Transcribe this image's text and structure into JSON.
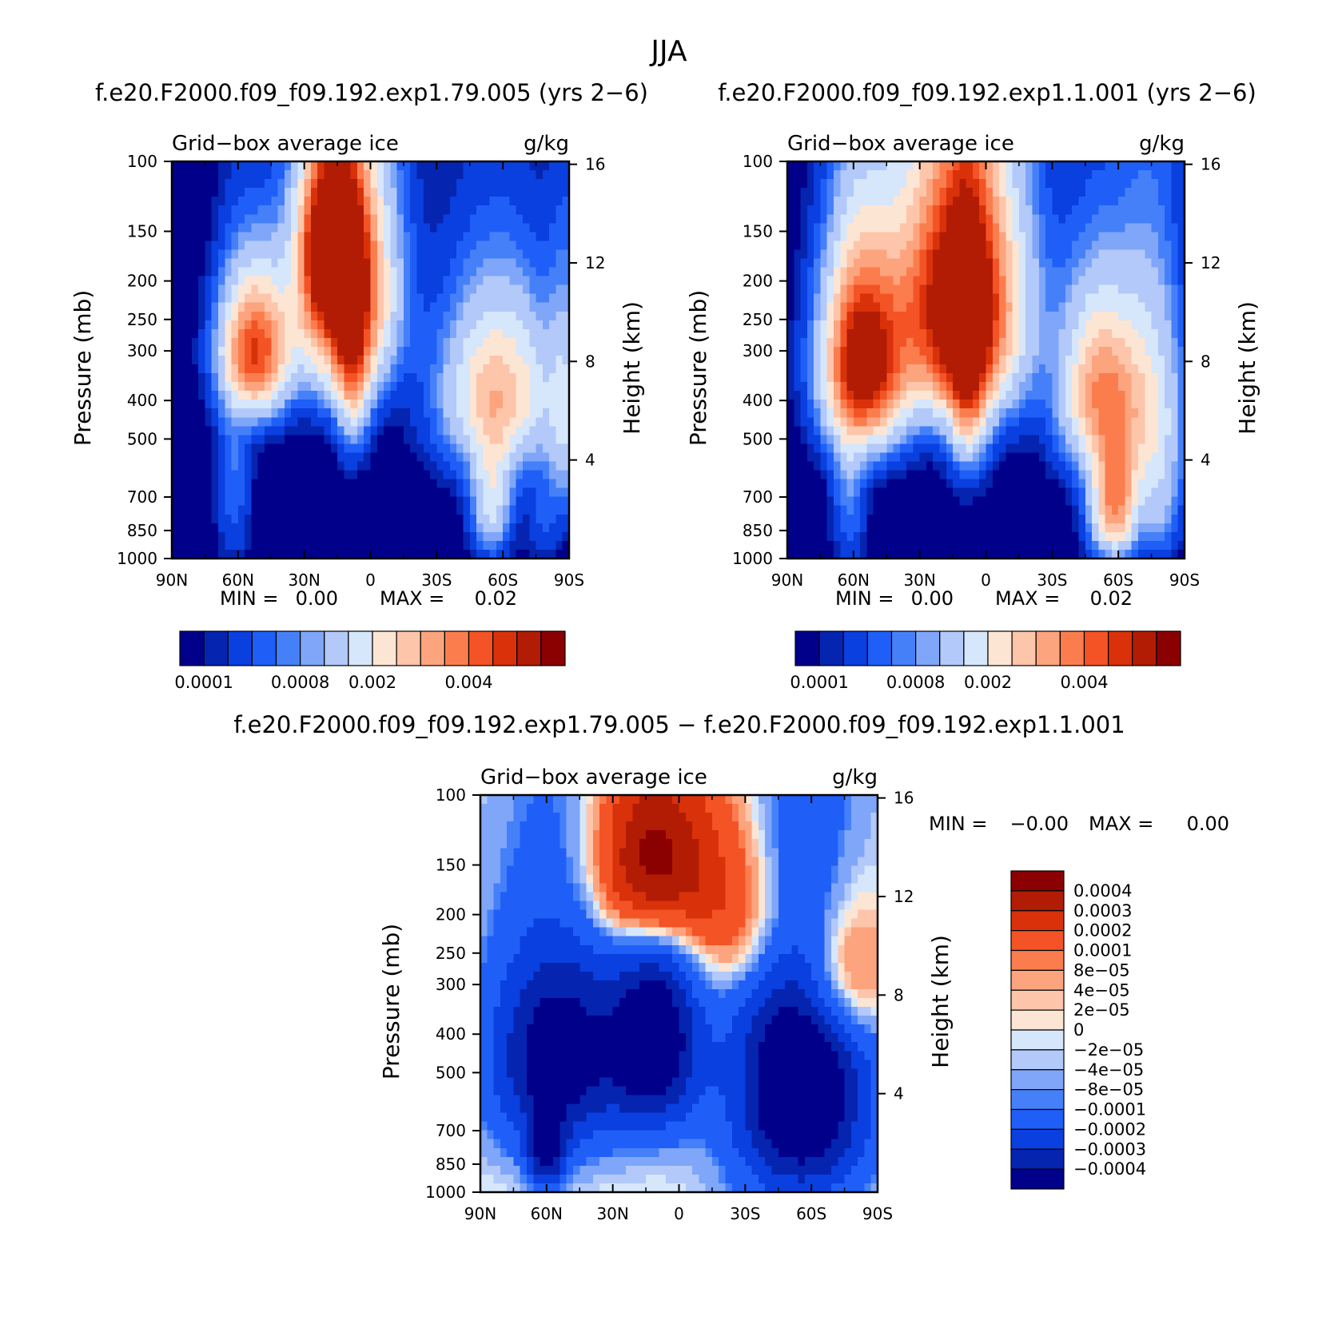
{
  "figure_title": "JJA",
  "chart_data": [
    {
      "type": "heatmap",
      "id": "top-left",
      "title": "f.e20.F2000.f09_f09.192.exp1.79.005 (yrs 2−6)",
      "left_label": "Grid−box average ice",
      "right_label": "g/kg",
      "ylabel": "Pressure (mb)",
      "ylabel_right": "Height (km)",
      "xlabel": "",
      "x_ticks": [
        "90N",
        "60N",
        "30N",
        "0",
        "30S",
        "60S",
        "90S"
      ],
      "y_ticks": [
        "100",
        "150",
        "200",
        "250",
        "300",
        "400",
        "500",
        "700",
        "850",
        "1000"
      ],
      "height_ticks": [
        "16",
        "12",
        "8",
        "4"
      ],
      "xlim": [
        90,
        -90
      ],
      "ylim": [
        1000,
        100
      ],
      "min_label": "MIN =",
      "min_value": "0.00",
      "max_label": "MAX =",
      "max_value": "0.02",
      "features": [
        {
          "lat": 12,
          "p": 210,
          "value": 0.0055,
          "lat_sigma": 14,
          "p_sigma": 100
        },
        {
          "lat": 18,
          "p": 160,
          "value": 0.005,
          "lat_sigma": 8,
          "p_sigma": 50
        },
        {
          "lat": 52,
          "p": 300,
          "value": 0.0045,
          "lat_sigma": 10,
          "p_sigma": 80
        },
        {
          "lat": 8,
          "p": 320,
          "value": 0.0025,
          "lat_sigma": 5,
          "p_sigma": 120
        },
        {
          "lat": -58,
          "p": 380,
          "value": 0.0028,
          "lat_sigma": 17,
          "p_sigma": 130
        },
        {
          "lat": -55,
          "p": 700,
          "value": 0.0018,
          "lat_sigma": 6,
          "p_sigma": 160
        },
        {
          "lat": -88,
          "p": 450,
          "value": 0.0012,
          "lat_sigma": 5,
          "p_sigma": 200
        },
        {
          "lat": 62,
          "p": 600,
          "value": 0.0006,
          "lat_sigma": 5,
          "p_sigma": 250
        },
        {
          "lat": -78,
          "p": 780,
          "value": 0.0004,
          "lat_sigma": 5,
          "p_sigma": 150
        }
      ],
      "colorbar": {
        "ticks": [
          "0.0001",
          "0.0008",
          "0.002",
          "0.004"
        ],
        "levels": [
          0.0001,
          0.0002,
          0.0004,
          0.0006,
          0.0008,
          0.001,
          0.0015,
          0.002,
          0.0025,
          0.003,
          0.0035,
          0.004,
          0.0045,
          0.005
        ],
        "colors": [
          "#00008b",
          "#0524b0",
          "#0a3fe0",
          "#1f5ff8",
          "#4580f9",
          "#7fa6f8",
          "#b2c9f9",
          "#d6e6fb",
          "#fde5d4",
          "#fdc5aa",
          "#fca47e",
          "#fb7d4e",
          "#f45325",
          "#d9320a",
          "#b21c05",
          "#8b0000"
        ]
      }
    },
    {
      "type": "heatmap",
      "id": "top-right",
      "title": "f.e20.F2000.f09_f09.192.exp1.1.001 (yrs 2−6)",
      "left_label": "Grid−box average ice",
      "right_label": "g/kg",
      "ylabel": "Pressure (mb)",
      "ylabel_right": "Height (km)",
      "xlabel": "",
      "x_ticks": [
        "90N",
        "60N",
        "30N",
        "0",
        "30S",
        "60S",
        "90S"
      ],
      "y_ticks": [
        "100",
        "150",
        "200",
        "250",
        "300",
        "400",
        "500",
        "700",
        "850",
        "1000"
      ],
      "height_ticks": [
        "16",
        "12",
        "8",
        "4"
      ],
      "xlim": [
        90,
        -90
      ],
      "ylim": [
        1000,
        100
      ],
      "min_label": "MIN =",
      "min_value": "0.00",
      "max_label": "MAX =",
      "max_value": "0.02",
      "features": [
        {
          "lat": 12,
          "p": 230,
          "value": 0.0065,
          "lat_sigma": 18,
          "p_sigma": 120
        },
        {
          "lat": 55,
          "p": 320,
          "value": 0.0058,
          "lat_sigma": 12,
          "p_sigma": 120
        },
        {
          "lat": 8,
          "p": 330,
          "value": 0.003,
          "lat_sigma": 6,
          "p_sigma": 150
        },
        {
          "lat": -52,
          "p": 380,
          "value": 0.0034,
          "lat_sigma": 12,
          "p_sigma": 130
        },
        {
          "lat": -58,
          "p": 720,
          "value": 0.0036,
          "lat_sigma": 7,
          "p_sigma": 160
        },
        {
          "lat": -75,
          "p": 450,
          "value": 0.0018,
          "lat_sigma": 10,
          "p_sigma": 220
        },
        {
          "lat": 62,
          "p": 600,
          "value": 0.0008,
          "lat_sigma": 5,
          "p_sigma": 250
        },
        {
          "lat": -80,
          "p": 780,
          "value": 0.0005,
          "lat_sigma": 5,
          "p_sigma": 150
        }
      ],
      "colorbar": {
        "ticks": [
          "0.0001",
          "0.0008",
          "0.002",
          "0.004"
        ],
        "levels": [
          0.0001,
          0.0002,
          0.0004,
          0.0006,
          0.0008,
          0.001,
          0.0015,
          0.002,
          0.0025,
          0.003,
          0.0035,
          0.004,
          0.0045,
          0.005
        ],
        "colors": [
          "#00008b",
          "#0524b0",
          "#0a3fe0",
          "#1f5ff8",
          "#4580f9",
          "#7fa6f8",
          "#b2c9f9",
          "#d6e6fb",
          "#fde5d4",
          "#fdc5aa",
          "#fca47e",
          "#fb7d4e",
          "#f45325",
          "#d9320a",
          "#b21c05",
          "#8b0000"
        ]
      }
    },
    {
      "type": "heatmap",
      "id": "difference",
      "title": "f.e20.F2000.f09_f09.192.exp1.79.005 − f.e20.F2000.f09_f09.192.exp1.1.001",
      "left_label": "Grid−box average ice",
      "right_label": "g/kg",
      "ylabel": "Pressure (mb)",
      "ylabel_right": "Height (km)",
      "xlabel": "",
      "x_ticks": [
        "90N",
        "60N",
        "30N",
        "0",
        "30S",
        "60S",
        "90S"
      ],
      "y_ticks": [
        "100",
        "150",
        "200",
        "250",
        "300",
        "400",
        "500",
        "700",
        "850",
        "1000"
      ],
      "height_ticks": [
        "16",
        "12",
        "8",
        "4"
      ],
      "xlim": [
        90,
        -90
      ],
      "ylim": [
        1000,
        100
      ],
      "min_label": "MIN =",
      "min_value": "−0.00",
      "max_label": "MAX =",
      "max_value": "0.00",
      "features": [
        {
          "lat": 12,
          "p": 150,
          "value": 0.0006,
          "lat_sigma": 18,
          "p_sigma": 60
        },
        {
          "lat": -30,
          "p": 200,
          "value": 0.00025,
          "lat_sigma": 18,
          "p_sigma": 80
        },
        {
          "lat": -75,
          "p": 280,
          "value": 0.0003,
          "lat_sigma": 14,
          "p_sigma": 90
        },
        {
          "lat": 55,
          "p": 200,
          "value": 5e-05,
          "lat_sigma": 20,
          "p_sigma": 80
        },
        {
          "lat": 55,
          "p": 450,
          "value": -0.0005,
          "lat_sigma": 22,
          "p_sigma": 220
        },
        {
          "lat": 10,
          "p": 420,
          "value": -0.0005,
          "lat_sigma": 14,
          "p_sigma": 180
        },
        {
          "lat": -55,
          "p": 550,
          "value": -0.0006,
          "lat_sigma": 22,
          "p_sigma": 320
        },
        {
          "lat": 60,
          "p": 800,
          "value": -0.0004,
          "lat_sigma": 6,
          "p_sigma": 120
        }
      ],
      "colorbar": {
        "ticks": [
          "0.0004",
          "0.0003",
          "0.0002",
          "0.0001",
          "8e−05",
          "4e−05",
          "2e−05",
          "0",
          "−2e−05",
          "−4e−05",
          "−8e−05",
          "−0.0001",
          "−0.0002",
          "−0.0003",
          "−0.0004"
        ],
        "levels": [
          -0.0004,
          -0.0003,
          -0.0002,
          -0.0001,
          -8e-05,
          -4e-05,
          -2e-05,
          0,
          2e-05,
          4e-05,
          8e-05,
          0.0001,
          0.0002,
          0.0003,
          0.0004
        ],
        "colors": [
          "#00008b",
          "#0524b0",
          "#0a3fe0",
          "#1f5ff8",
          "#4580f9",
          "#7fa6f8",
          "#b2c9f9",
          "#d6e6fb",
          "#fde5d4",
          "#fdc5aa",
          "#fca47e",
          "#fb7d4e",
          "#f45325",
          "#d9320a",
          "#b21c05",
          "#8b0000"
        ]
      }
    }
  ]
}
